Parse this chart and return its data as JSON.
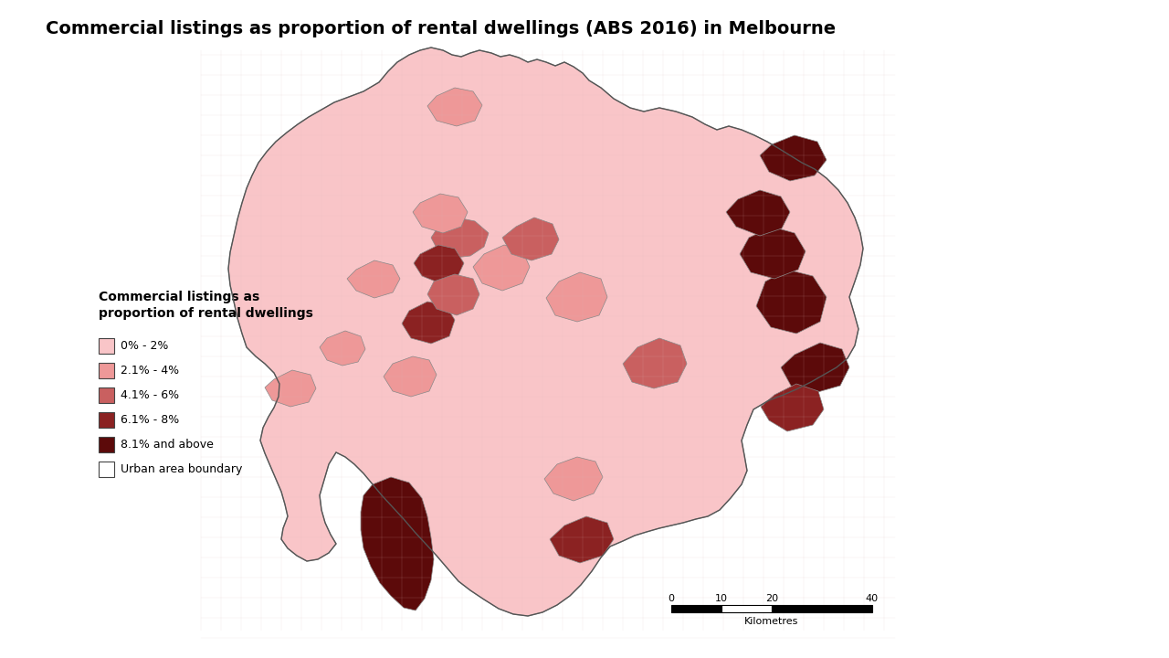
{
  "title": "Commercial listings as proportion of rental dwellings (ABS 2016) in Melbourne",
  "legend_title_line1": "Commercial listings as",
  "legend_title_line2": "proportion of rental dwellings",
  "legend_items": [
    {
      "label": "0% - 2%",
      "color": "#F9C5C8"
    },
    {
      "label": "2.1% - 4%",
      "color": "#EE9898"
    },
    {
      "label": "4.1% - 6%",
      "color": "#C96060"
    },
    {
      "label": "6.1% - 8%",
      "color": "#8B2222"
    },
    {
      "label": "8.1% and above",
      "color": "#5C0A0A"
    },
    {
      "label": "Urban area boundary",
      "color": "#FFFFFF"
    }
  ],
  "bg_color": "#FFFFFF",
  "title_color": "#000000",
  "title_fontsize": 14,
  "legend_title_fontsize": 10,
  "legend_label_fontsize": 9,
  "scalebar_labels": [
    "0",
    "10",
    "20",
    "40"
  ],
  "scalebar_km_label": "Kilometres"
}
